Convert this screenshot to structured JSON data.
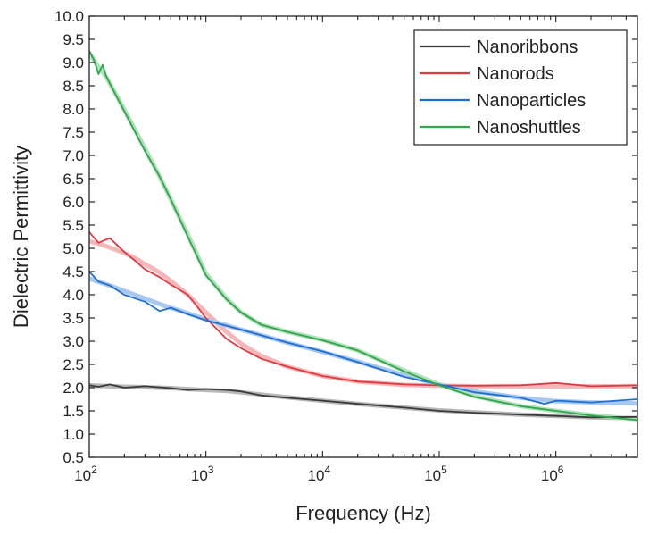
{
  "chart_data": {
    "type": "line",
    "xlabel": "Frequency (Hz)",
    "ylabel": "Dielectric Permittivity",
    "x_scale": "log",
    "xlim": [
      100,
      5000000
    ],
    "ylim": [
      0.5,
      10.0
    ],
    "grid": false,
    "legend_position": "top-right",
    "x_ticks": [
      {
        "value": 100,
        "base": "10",
        "exp": "2"
      },
      {
        "value": 1000,
        "base": "10",
        "exp": "3"
      },
      {
        "value": 10000,
        "base": "10",
        "exp": "4"
      },
      {
        "value": 100000,
        "base": "10",
        "exp": "5"
      },
      {
        "value": 1000000,
        "base": "10",
        "exp": "6"
      }
    ],
    "y_ticks": [
      "0.5",
      "1.0",
      "1.5",
      "2.0",
      "2.5",
      "3.0",
      "3.5",
      "4.0",
      "4.5",
      "5.0",
      "5.5",
      "6.0",
      "6.5",
      "7.0",
      "7.5",
      "8.0",
      "8.5",
      "9.0",
      "9.5",
      "10.0"
    ],
    "series": [
      {
        "name": "Nanoribbons",
        "color": "#3a3a3a",
        "fit_color": "#b8b8b8",
        "x": [
          100,
          120,
          150,
          200,
          300,
          500,
          700,
          1000,
          1500,
          2000,
          3000,
          5000,
          10000,
          20000,
          50000,
          100000,
          200000,
          500000,
          1000000,
          2000000,
          5000000
        ],
        "y": [
          2.05,
          2.02,
          2.07,
          2.0,
          2.03,
          1.99,
          1.95,
          1.97,
          1.95,
          1.92,
          1.83,
          1.78,
          1.72,
          1.65,
          1.57,
          1.5,
          1.46,
          1.42,
          1.39,
          1.36,
          1.37
        ],
        "fit": [
          2.05,
          2.04,
          2.03,
          2.02,
          2.01,
          1.99,
          1.97,
          1.95,
          1.93,
          1.9,
          1.85,
          1.79,
          1.72,
          1.65,
          1.57,
          1.51,
          1.47,
          1.42,
          1.39,
          1.36,
          1.34
        ]
      },
      {
        "name": "Nanorods",
        "color": "#e0383e",
        "fit_color": "#f4b8ba",
        "x": [
          100,
          120,
          150,
          200,
          250,
          300,
          400,
          500,
          700,
          1000,
          1500,
          2000,
          3000,
          5000,
          10000,
          20000,
          50000,
          100000,
          200000,
          500000,
          1000000,
          2000000,
          5000000
        ],
        "y": [
          5.35,
          5.12,
          5.22,
          4.92,
          4.72,
          4.55,
          4.38,
          4.22,
          4.0,
          3.5,
          3.05,
          2.85,
          2.62,
          2.45,
          2.25,
          2.13,
          2.07,
          2.05,
          2.04,
          2.05,
          2.1,
          2.03,
          2.05
        ],
        "fit": [
          5.15,
          5.1,
          5.02,
          4.9,
          4.78,
          4.66,
          4.48,
          4.3,
          4.0,
          3.62,
          3.2,
          2.95,
          2.68,
          2.45,
          2.25,
          2.13,
          2.06,
          2.04,
          2.03,
          2.03,
          2.03,
          2.03,
          2.03
        ]
      },
      {
        "name": "Nanoparticles",
        "color": "#1f6fd1",
        "fit_color": "#a8c8ee",
        "x": [
          100,
          120,
          150,
          200,
          300,
          400,
          500,
          700,
          1000,
          2000,
          5000,
          10000,
          20000,
          50000,
          100000,
          200000,
          500000,
          800000,
          1000000,
          2000000,
          5000000
        ],
        "y": [
          4.5,
          4.28,
          4.2,
          4.0,
          3.85,
          3.65,
          3.72,
          3.58,
          3.45,
          3.25,
          2.97,
          2.78,
          2.55,
          2.23,
          2.07,
          1.9,
          1.78,
          1.65,
          1.72,
          1.68,
          1.75
        ],
        "fit": [
          4.35,
          4.28,
          4.2,
          4.08,
          3.92,
          3.8,
          3.72,
          3.6,
          3.47,
          3.25,
          2.97,
          2.77,
          2.56,
          2.27,
          2.07,
          1.92,
          1.78,
          1.73,
          1.71,
          1.68,
          1.66
        ]
      },
      {
        "name": "Nanoshuttles",
        "color": "#2ea84a",
        "fit_color": "#b2dfbc",
        "x": [
          100,
          110,
          120,
          130,
          140,
          150,
          200,
          300,
          400,
          500,
          700,
          1000,
          1500,
          2000,
          3000,
          5000,
          10000,
          20000,
          50000,
          100000,
          200000,
          500000,
          1000000,
          2000000,
          5000000
        ],
        "y": [
          9.25,
          9.05,
          8.75,
          8.95,
          8.7,
          8.55,
          7.95,
          7.1,
          6.55,
          6.05,
          5.25,
          4.42,
          3.9,
          3.62,
          3.35,
          3.2,
          3.02,
          2.8,
          2.35,
          2.05,
          1.8,
          1.6,
          1.5,
          1.4,
          1.3
        ],
        "fit": [
          9.2,
          9.05,
          8.9,
          8.8,
          8.68,
          8.55,
          7.98,
          7.15,
          6.55,
          6.05,
          5.3,
          4.45,
          3.92,
          3.62,
          3.35,
          3.2,
          3.03,
          2.8,
          2.37,
          2.07,
          1.82,
          1.6,
          1.5,
          1.41,
          1.32
        ]
      }
    ]
  }
}
